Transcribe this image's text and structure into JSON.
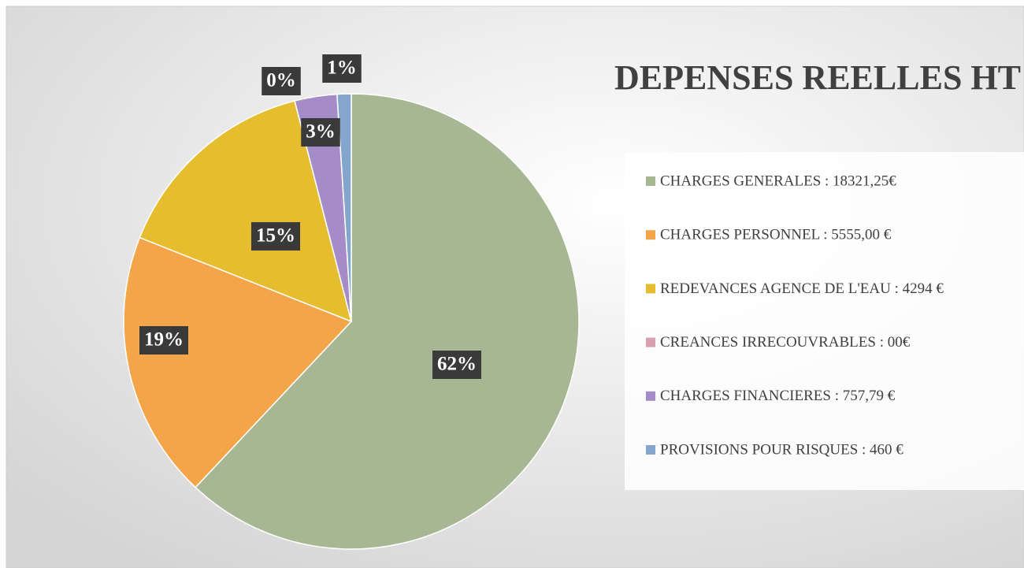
{
  "chart_data": {
    "type": "pie",
    "title": "DEPENSES REELLES HT",
    "categories": [
      "CHARGES GENERALES : 18321,25€",
      "CHARGES PERSONNEL : 5555,00 €",
      "REDEVANCES AGENCE DE L'EAU : 4294 €",
      "CREANCES IRRECOUVRABLES : 00€",
      "CHARGES FINANCIERES : 757,79 €",
      "PROVISIONS POUR RISQUES : 460 €"
    ],
    "values": [
      62,
      19,
      15,
      0,
      3,
      1
    ],
    "value_labels": [
      "62%",
      "19%",
      "15%",
      "0%",
      "3%",
      "1%"
    ],
    "colors": [
      "#a7b794",
      "#f4a54a",
      "#e6bd2e",
      "#d9a0ae",
      "#a58bc8",
      "#84a6cc"
    ],
    "legend": "right"
  }
}
